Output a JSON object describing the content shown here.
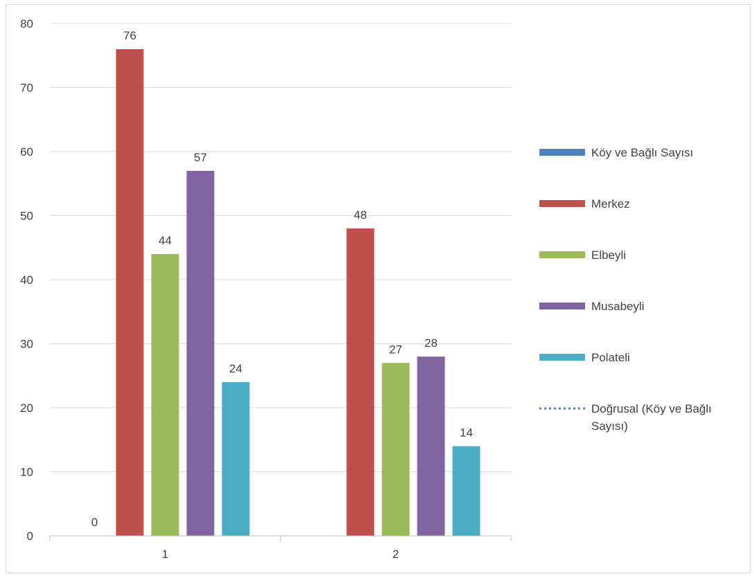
{
  "chart_data": {
    "type": "bar",
    "categories": [
      "1",
      "2"
    ],
    "series": [
      {
        "name": "Köy ve Bağlı Sayısı",
        "values": [
          0,
          null
        ],
        "color": "#4f81bd"
      },
      {
        "name": "Merkez",
        "values": [
          76,
          48
        ],
        "color": "#c0504d"
      },
      {
        "name": "Elbeyli",
        "values": [
          44,
          27
        ],
        "color": "#9bbb59"
      },
      {
        "name": "Musabeyli",
        "values": [
          57,
          28
        ],
        "color": "#8064a2"
      },
      {
        "name": "Polateli",
        "values": [
          24,
          14
        ],
        "color": "#4bacc6"
      }
    ],
    "trendline": {
      "name_lines": [
        "Doğrusal (Köy ve Bağlı",
        "Sayısı)"
      ],
      "style": "dotted",
      "color": "#4f81bd"
    },
    "ylim": [
      0,
      80
    ],
    "yticks": [
      0,
      10,
      20,
      30,
      40,
      50,
      60,
      70,
      80
    ],
    "grid": true,
    "legend_position": "right",
    "gridline_color": "#d9d9d9",
    "axis_color": "#bfbfbf"
  }
}
